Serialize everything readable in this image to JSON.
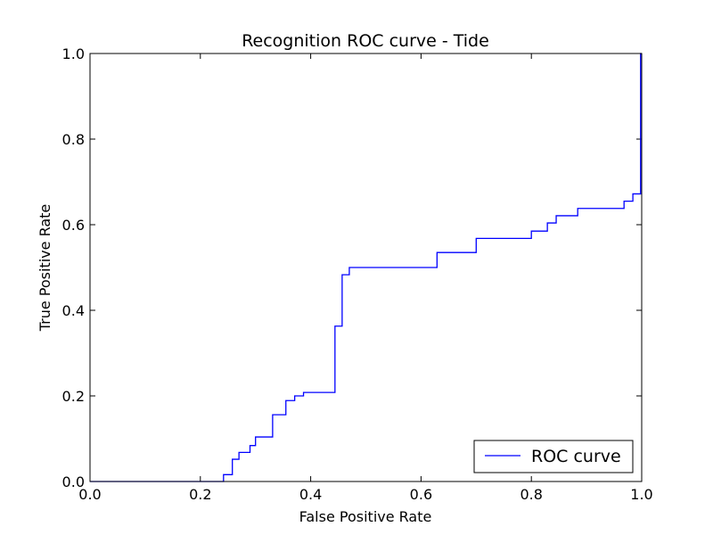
{
  "chart_data": {
    "type": "line",
    "title": "Recognition ROC curve - Tide",
    "xlabel": "False Positive Rate",
    "ylabel": "True Positive Rate",
    "xlim": [
      0.0,
      1.0
    ],
    "ylim": [
      0.0,
      1.0
    ],
    "x_ticks": [
      "0.0",
      "0.2",
      "0.4",
      "0.6",
      "0.8",
      "1.0"
    ],
    "y_ticks": [
      "0.0",
      "0.2",
      "0.4",
      "0.6",
      "0.8",
      "1.0"
    ],
    "grid": false,
    "legend_position": "lower-right",
    "series": [
      {
        "name": "ROC curve",
        "color": "#0000ff",
        "step": true,
        "x": [
          0.0,
          0.242,
          0.258,
          0.27,
          0.29,
          0.3,
          0.331,
          0.355,
          0.371,
          0.387,
          0.444,
          0.457,
          0.47,
          0.629,
          0.7,
          0.8,
          0.829,
          0.845,
          0.884,
          0.968,
          0.984,
          0.998,
          1.0
        ],
        "y": [
          0.0,
          0.016,
          0.052,
          0.068,
          0.084,
          0.104,
          0.156,
          0.189,
          0.2,
          0.208,
          0.363,
          0.483,
          0.5,
          0.535,
          0.568,
          0.585,
          0.604,
          0.621,
          0.638,
          0.655,
          0.672,
          1.0,
          1.0
        ]
      }
    ]
  }
}
